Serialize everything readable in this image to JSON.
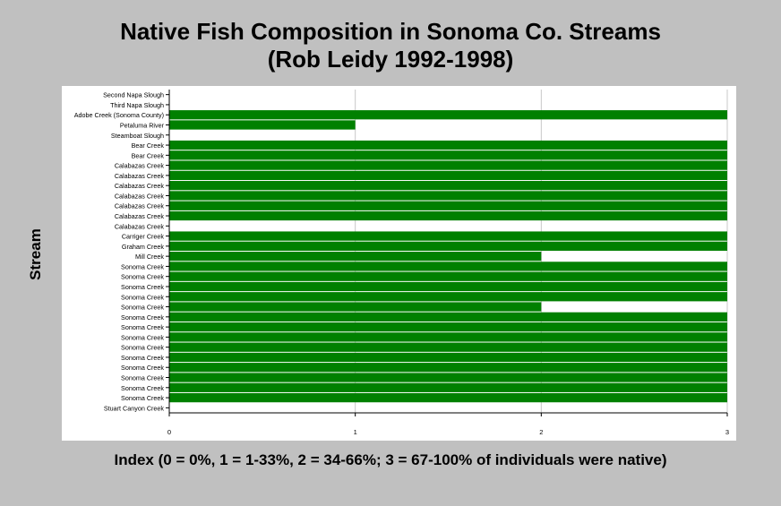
{
  "chart_data": {
    "type": "bar",
    "orientation": "horizontal",
    "title": "Native Fish Composition in Sonoma Co. Streams\n(Rob Leidy 1992-1998)",
    "xlabel": "Index (0 = 0%, 1 = 1-33%, 2 = 34-66%; 3 = 67-100% of individuals were native)",
    "ylabel": "Stream",
    "xlim": [
      0,
      3
    ],
    "xticks": [
      0,
      1,
      2,
      3
    ],
    "grid": "vertical",
    "bar_color": "#008000",
    "categories": [
      "Second Napa Slough",
      "Third Napa Slough",
      "Adobe Creek (Sonoma County)",
      "Petaluma River",
      "Steamboat Slough",
      "Bear Creek",
      "Bear Creek",
      "Calabazas Creek",
      "Calabazas Creek",
      "Calabazas Creek",
      "Calabazas Creek",
      "Calabazas Creek",
      "Calabazas Creek",
      "Calabazas Creek",
      "Carriger Creek",
      "Graham Creek",
      "Mill Creek",
      "Sonoma Creek",
      "Sonoma Creek",
      "Sonoma Creek",
      "Sonoma Creek",
      "Sonoma Creek",
      "Sonoma Creek",
      "Sonoma Creek",
      "Sonoma Creek",
      "Sonoma Creek",
      "Sonoma Creek",
      "Sonoma Creek",
      "Sonoma Creek",
      "Sonoma Creek",
      "Sonoma Creek",
      "Stuart Canyon Creek"
    ],
    "values": [
      0,
      0,
      3,
      1,
      0,
      3,
      3,
      3,
      3,
      3,
      3,
      3,
      3,
      0,
      3,
      3,
      2,
      3,
      3,
      3,
      3,
      2,
      3,
      3,
      3,
      3,
      3,
      3,
      3,
      3,
      3,
      0
    ]
  }
}
